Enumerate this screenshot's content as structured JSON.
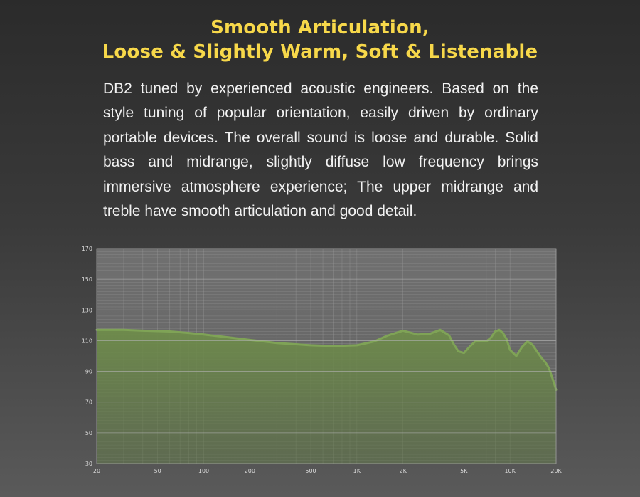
{
  "header": {
    "title_line1": "Smooth Articulation,",
    "title_line2": "Loose & Slightly Warm, Soft & Listenable"
  },
  "description": "DB2 tuned by experienced acoustic engineers. Based on the style tuning of popular orientation, easily driven by ordinary portable devices. The overall sound is loose and durable. Solid bass and midrange, slightly diffuse low frequency brings immersive atmosphere experience; The upper midrange and treble have smooth articulation and good detail.",
  "colors": {
    "title": "#f7d84a",
    "text": "#f2f2f2",
    "curve_fill": "#6f8f4a",
    "curve_line": "#7fa356",
    "grid": "#9a9a9a",
    "plot_bg": "#6a6a6a"
  },
  "chart_data": {
    "type": "area",
    "title": "",
    "xlabel": "",
    "ylabel": "",
    "x_scale": "log",
    "xlim": [
      20,
      20000
    ],
    "ylim": [
      30,
      170
    ],
    "grid": true,
    "x_ticks": [
      {
        "value": 20,
        "label": "20"
      },
      {
        "value": 50,
        "label": "50"
      },
      {
        "value": 100,
        "label": "100"
      },
      {
        "value": 200,
        "label": "200"
      },
      {
        "value": 500,
        "label": "500"
      },
      {
        "value": 1000,
        "label": "1K"
      },
      {
        "value": 2000,
        "label": "2K"
      },
      {
        "value": 5000,
        "label": "5K"
      },
      {
        "value": 10000,
        "label": "10K"
      },
      {
        "value": 20000,
        "label": "20K"
      }
    ],
    "y_ticks": [
      {
        "value": 30,
        "label": "30"
      },
      {
        "value": 50,
        "label": "50"
      },
      {
        "value": 70,
        "label": "70"
      },
      {
        "value": 90,
        "label": "90"
      },
      {
        "value": 110,
        "label": "110"
      },
      {
        "value": 130,
        "label": "130"
      },
      {
        "value": 150,
        "label": "150"
      },
      {
        "value": 170,
        "label": "170"
      }
    ],
    "series": [
      {
        "x": [
          20,
          30,
          40,
          60,
          80,
          100,
          150,
          200,
          300,
          500,
          700,
          1000,
          1300,
          1600,
          2000,
          2500,
          3000,
          3500,
          4000,
          4300,
          4600,
          5000,
          5500,
          6000,
          6500,
          7000,
          7500,
          8000,
          8500,
          9000,
          9500,
          10000,
          11000,
          12000,
          13000,
          14000,
          15000,
          16000,
          17000,
          18000,
          19000,
          20000
        ],
        "y": [
          117,
          117,
          116.5,
          116,
          115,
          114,
          112,
          110.5,
          108.5,
          107,
          106.5,
          107,
          109.5,
          113.5,
          116.5,
          114,
          114.5,
          117,
          113.5,
          107.5,
          103,
          102,
          106.5,
          110,
          109.5,
          109.5,
          112,
          116,
          117,
          115,
          111,
          104,
          100,
          106,
          109.5,
          107.5,
          103,
          99,
          96,
          92,
          85,
          78
        ]
      }
    ]
  }
}
